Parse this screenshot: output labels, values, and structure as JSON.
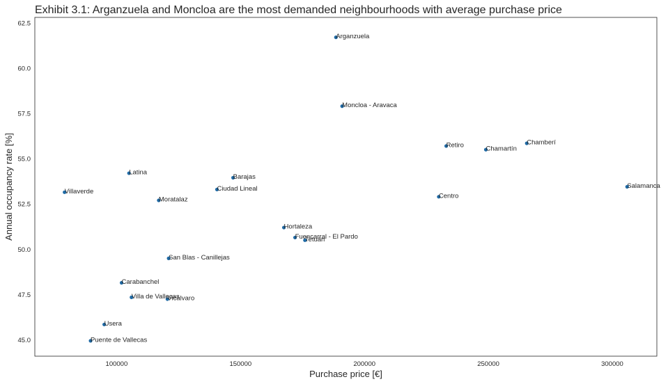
{
  "chart_data": {
    "type": "scatter",
    "title": "Exhibit 3.1: Arganzuela and Moncloa are the most demanded neighbourhoods with average purchase price",
    "xlabel": "Purchase price [€]",
    "ylabel": "Annual occupancy rate [%]",
    "xlim": [
      67000,
      318000
    ],
    "ylim": [
      44.1,
      62.8
    ],
    "xticks": [
      100000,
      150000,
      200000,
      250000,
      300000
    ],
    "yticks": [
      45.0,
      47.5,
      50.0,
      52.5,
      55.0,
      57.5,
      60.0,
      62.5
    ],
    "grid": false,
    "point_color": "#1f6aa5",
    "points": [
      {
        "label": "Arganzuela",
        "x": 188500,
        "y": 61.7
      },
      {
        "label": "Moncloa - Aravaca",
        "x": 191000,
        "y": 57.9
      },
      {
        "label": "Retiro",
        "x": 233000,
        "y": 55.7
      },
      {
        "label": "Chamartín",
        "x": 249000,
        "y": 55.5
      },
      {
        "label": "Chamberí",
        "x": 265500,
        "y": 55.85
      },
      {
        "label": "Salamanca",
        "x": 306000,
        "y": 53.45
      },
      {
        "label": "Centro",
        "x": 230000,
        "y": 52.9
      },
      {
        "label": "Latina",
        "x": 105000,
        "y": 54.2
      },
      {
        "label": "Barajas",
        "x": 147000,
        "y": 53.95
      },
      {
        "label": "Ciudad Lineal",
        "x": 140500,
        "y": 53.3
      },
      {
        "label": "Villaverde",
        "x": 79000,
        "y": 53.15
      },
      {
        "label": "Moratalaz",
        "x": 117000,
        "y": 52.7
      },
      {
        "label": "Hortaleza",
        "x": 167500,
        "y": 51.2
      },
      {
        "label": "Fuencarral - El Pardo",
        "x": 172000,
        "y": 50.65
      },
      {
        "label": "Tetuán",
        "x": 176000,
        "y": 50.5
      },
      {
        "label": "San Blas - Canillejas",
        "x": 121000,
        "y": 49.5
      },
      {
        "label": "Carabanchel",
        "x": 102000,
        "y": 48.15
      },
      {
        "label": "Villa de Vallecas",
        "x": 106000,
        "y": 47.35
      },
      {
        "label": "Vicálvaro",
        "x": 120500,
        "y": 47.25
      },
      {
        "label": "Usera",
        "x": 95000,
        "y": 45.85
      },
      {
        "label": "Puente de Vallecas",
        "x": 89500,
        "y": 44.95
      }
    ]
  }
}
